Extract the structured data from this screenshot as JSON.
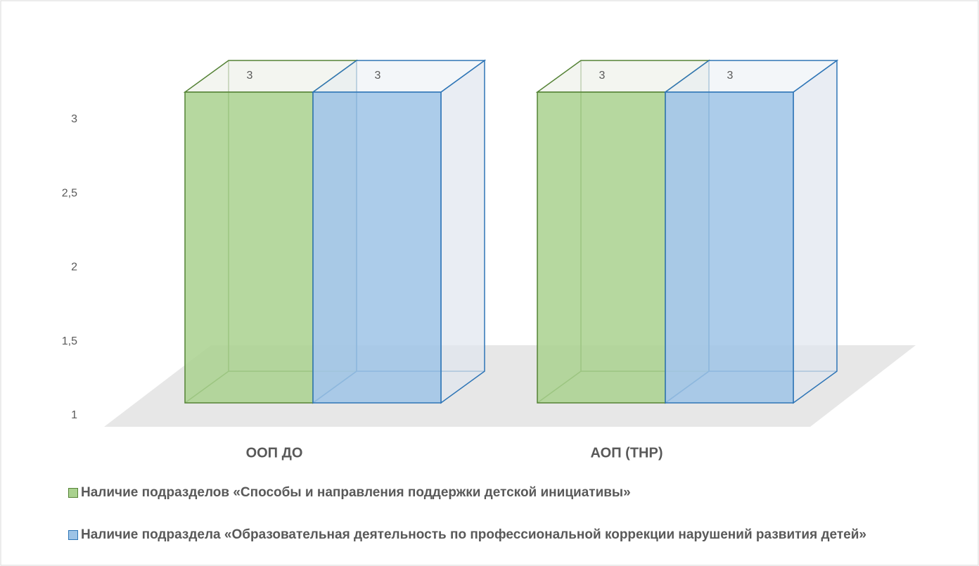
{
  "chart_data": {
    "type": "bar3d",
    "categories": [
      "ООП ДО",
      "АОП (ТНР)"
    ],
    "series": [
      {
        "name": "Наличие  подразделов «Способы и направления поддержки детской инициативы»",
        "color": "#a9d18e",
        "values": [
          3,
          3
        ]
      },
      {
        "name": "Наличие подраздела «Образовательная деятельность по профессиональной коррекции нарушений развития детей»",
        "color": "#9dc3e6",
        "values": [
          3,
          3
        ]
      }
    ],
    "ylim": [
      1,
      3
    ],
    "yticks": [
      1,
      {
        "value": 1.5,
        "label": "1,5"
      },
      2,
      {
        "value": 2.5,
        "label": "2,5"
      },
      3
    ]
  }
}
